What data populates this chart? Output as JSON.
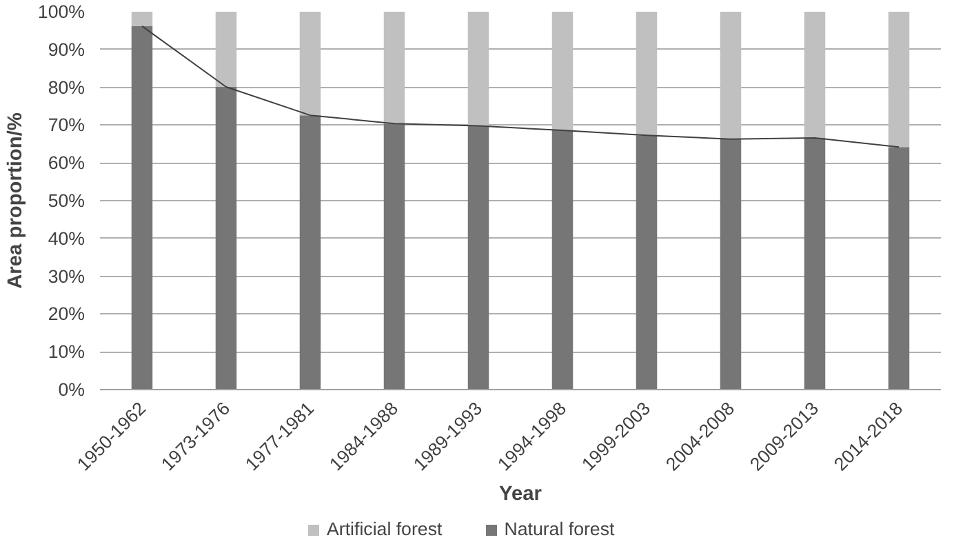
{
  "chart_data": {
    "type": "bar",
    "stacked": true,
    "ylabel": "Area proportion/%",
    "xlabel": "Year",
    "categories": [
      "1950-1962",
      "1973-1976",
      "1977-1981",
      "1984-1988",
      "1989-1993",
      "1994-1998",
      "1999-2003",
      "2004-2008",
      "2009-2013",
      "2014-2018"
    ],
    "series": [
      {
        "name": "Natural forest",
        "color": "#767676",
        "values": [
          96.2,
          80.1,
          72.6,
          70.4,
          69.8,
          68.6,
          67.3,
          66.3,
          66.6,
          64.2
        ]
      },
      {
        "name": "Artificial forest",
        "color": "#c0c0c0",
        "values": [
          3.8,
          19.9,
          27.4,
          29.6,
          30.2,
          31.4,
          32.7,
          33.7,
          33.4,
          35.8
        ]
      },
      {
        "type": "line",
        "color": "#404040",
        "values": [
          96.2,
          80.1,
          72.6,
          70.4,
          69.8,
          68.6,
          67.3,
          66.3,
          66.6,
          64.2
        ]
      }
    ],
    "ylim": [
      0,
      100
    ],
    "yticks": [
      {
        "value": 0,
        "label": "0%"
      },
      {
        "value": 10,
        "label": "10%"
      },
      {
        "value": 20,
        "label": "20%"
      },
      {
        "value": 30,
        "label": "30%"
      },
      {
        "value": 40,
        "label": "40%"
      },
      {
        "value": 50,
        "label": "50%"
      },
      {
        "value": 60,
        "label": "60%"
      },
      {
        "value": 70,
        "label": "70%"
      },
      {
        "value": 80,
        "label": "80%"
      },
      {
        "value": 90,
        "label": "90%"
      },
      {
        "value": 100,
        "label": "100%"
      }
    ],
    "grid": "y",
    "legend": "bottom"
  }
}
